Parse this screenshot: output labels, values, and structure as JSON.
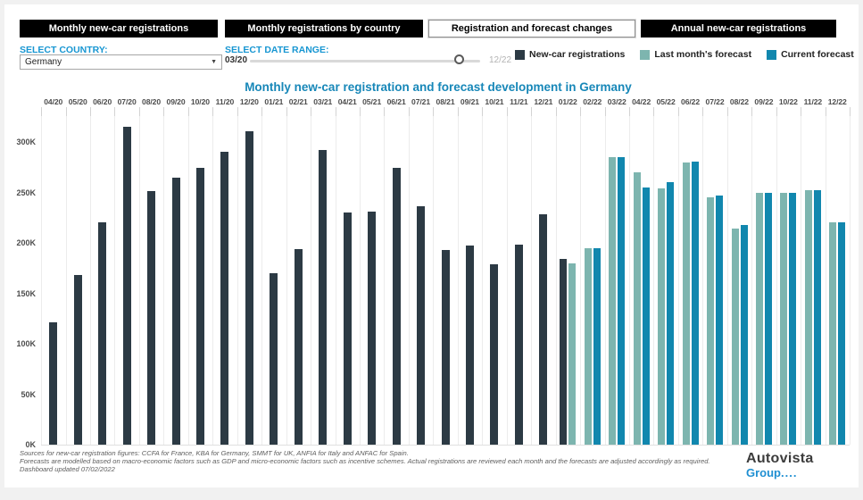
{
  "tabs": [
    {
      "label": "Monthly new-car registrations",
      "active": false
    },
    {
      "label": "Monthly registrations by country",
      "active": false
    },
    {
      "label": "Registration and forecast changes",
      "active": true
    },
    {
      "label": "Annual new-car registrations",
      "active": false
    }
  ],
  "controls": {
    "country_label": "SELECT COUNTRY:",
    "country_value": "Germany",
    "date_range_label": "SELECT DATE RANGE:",
    "date_start": "03/20",
    "date_end": "12/22"
  },
  "legend": [
    {
      "label": "New-car registrations",
      "color": "#2c3a44"
    },
    {
      "label": "Last month's forecast",
      "color": "#7db5af"
    },
    {
      "label": "Current forecast",
      "color": "#1187ae"
    }
  ],
  "chart_data": {
    "type": "bar",
    "title": "Monthly new-car registration and forecast development in Germany",
    "unit": "thousands of registrations",
    "categories": [
      "04/20",
      "05/20",
      "06/20",
      "07/20",
      "08/20",
      "09/20",
      "10/20",
      "11/20",
      "12/20",
      "01/21",
      "02/21",
      "03/21",
      "04/21",
      "05/21",
      "06/21",
      "07/21",
      "08/21",
      "09/21",
      "10/21",
      "11/21",
      "12/21",
      "01/22",
      "02/22",
      "03/22",
      "04/22",
      "05/22",
      "06/22",
      "07/22",
      "08/22",
      "09/22",
      "10/22",
      "11/22",
      "12/22"
    ],
    "series": [
      {
        "name": "New-car registrations",
        "color": "#2c3a44",
        "values_k": [
          121,
          168,
          220,
          315,
          251,
          265,
          274,
          290,
          311,
          170,
          194,
          292,
          230,
          231,
          274,
          236,
          193,
          197,
          179,
          198,
          228,
          184,
          null,
          null,
          null,
          null,
          null,
          null,
          null,
          null,
          null,
          null,
          null
        ]
      },
      {
        "name": "Last month's forecast",
        "color": "#7db5af",
        "values_k": [
          null,
          null,
          null,
          null,
          null,
          null,
          null,
          null,
          null,
          null,
          null,
          null,
          null,
          null,
          null,
          null,
          null,
          null,
          null,
          null,
          null,
          180,
          195,
          285,
          270,
          254,
          280,
          245,
          214,
          250,
          250,
          252,
          220
        ]
      },
      {
        "name": "Current forecast",
        "color": "#1187ae",
        "values_k": [
          null,
          null,
          null,
          null,
          null,
          null,
          null,
          null,
          null,
          null,
          null,
          null,
          null,
          null,
          null,
          null,
          null,
          null,
          null,
          null,
          null,
          null,
          195,
          285,
          255,
          260,
          281,
          247,
          218,
          250,
          250,
          252,
          220
        ]
      }
    ],
    "y_ticks": [
      "0K",
      "50K",
      "100K",
      "150K",
      "200K",
      "250K",
      "300K"
    ],
    "ylim_k": [
      0,
      320
    ],
    "grid": "vertical",
    "legend_position": "top-right"
  },
  "footer": {
    "line1": "Sources for new-car registration figures: CCFA for France, KBA for Germany, SMMT for UK, ANFIA for Italy and ANFAC for Spain.",
    "line2": "Forecasts are modelled based on macro-economic factors such as GDP and micro-economic factors such as incentive schemes. Actual registrations are reviewed each month and the forecasts are adjusted accordingly as required.",
    "line3": "Dashboard updated 07/02/2022"
  },
  "logo": {
    "name": "Autovista",
    "group": "Group",
    "dots": "...."
  }
}
